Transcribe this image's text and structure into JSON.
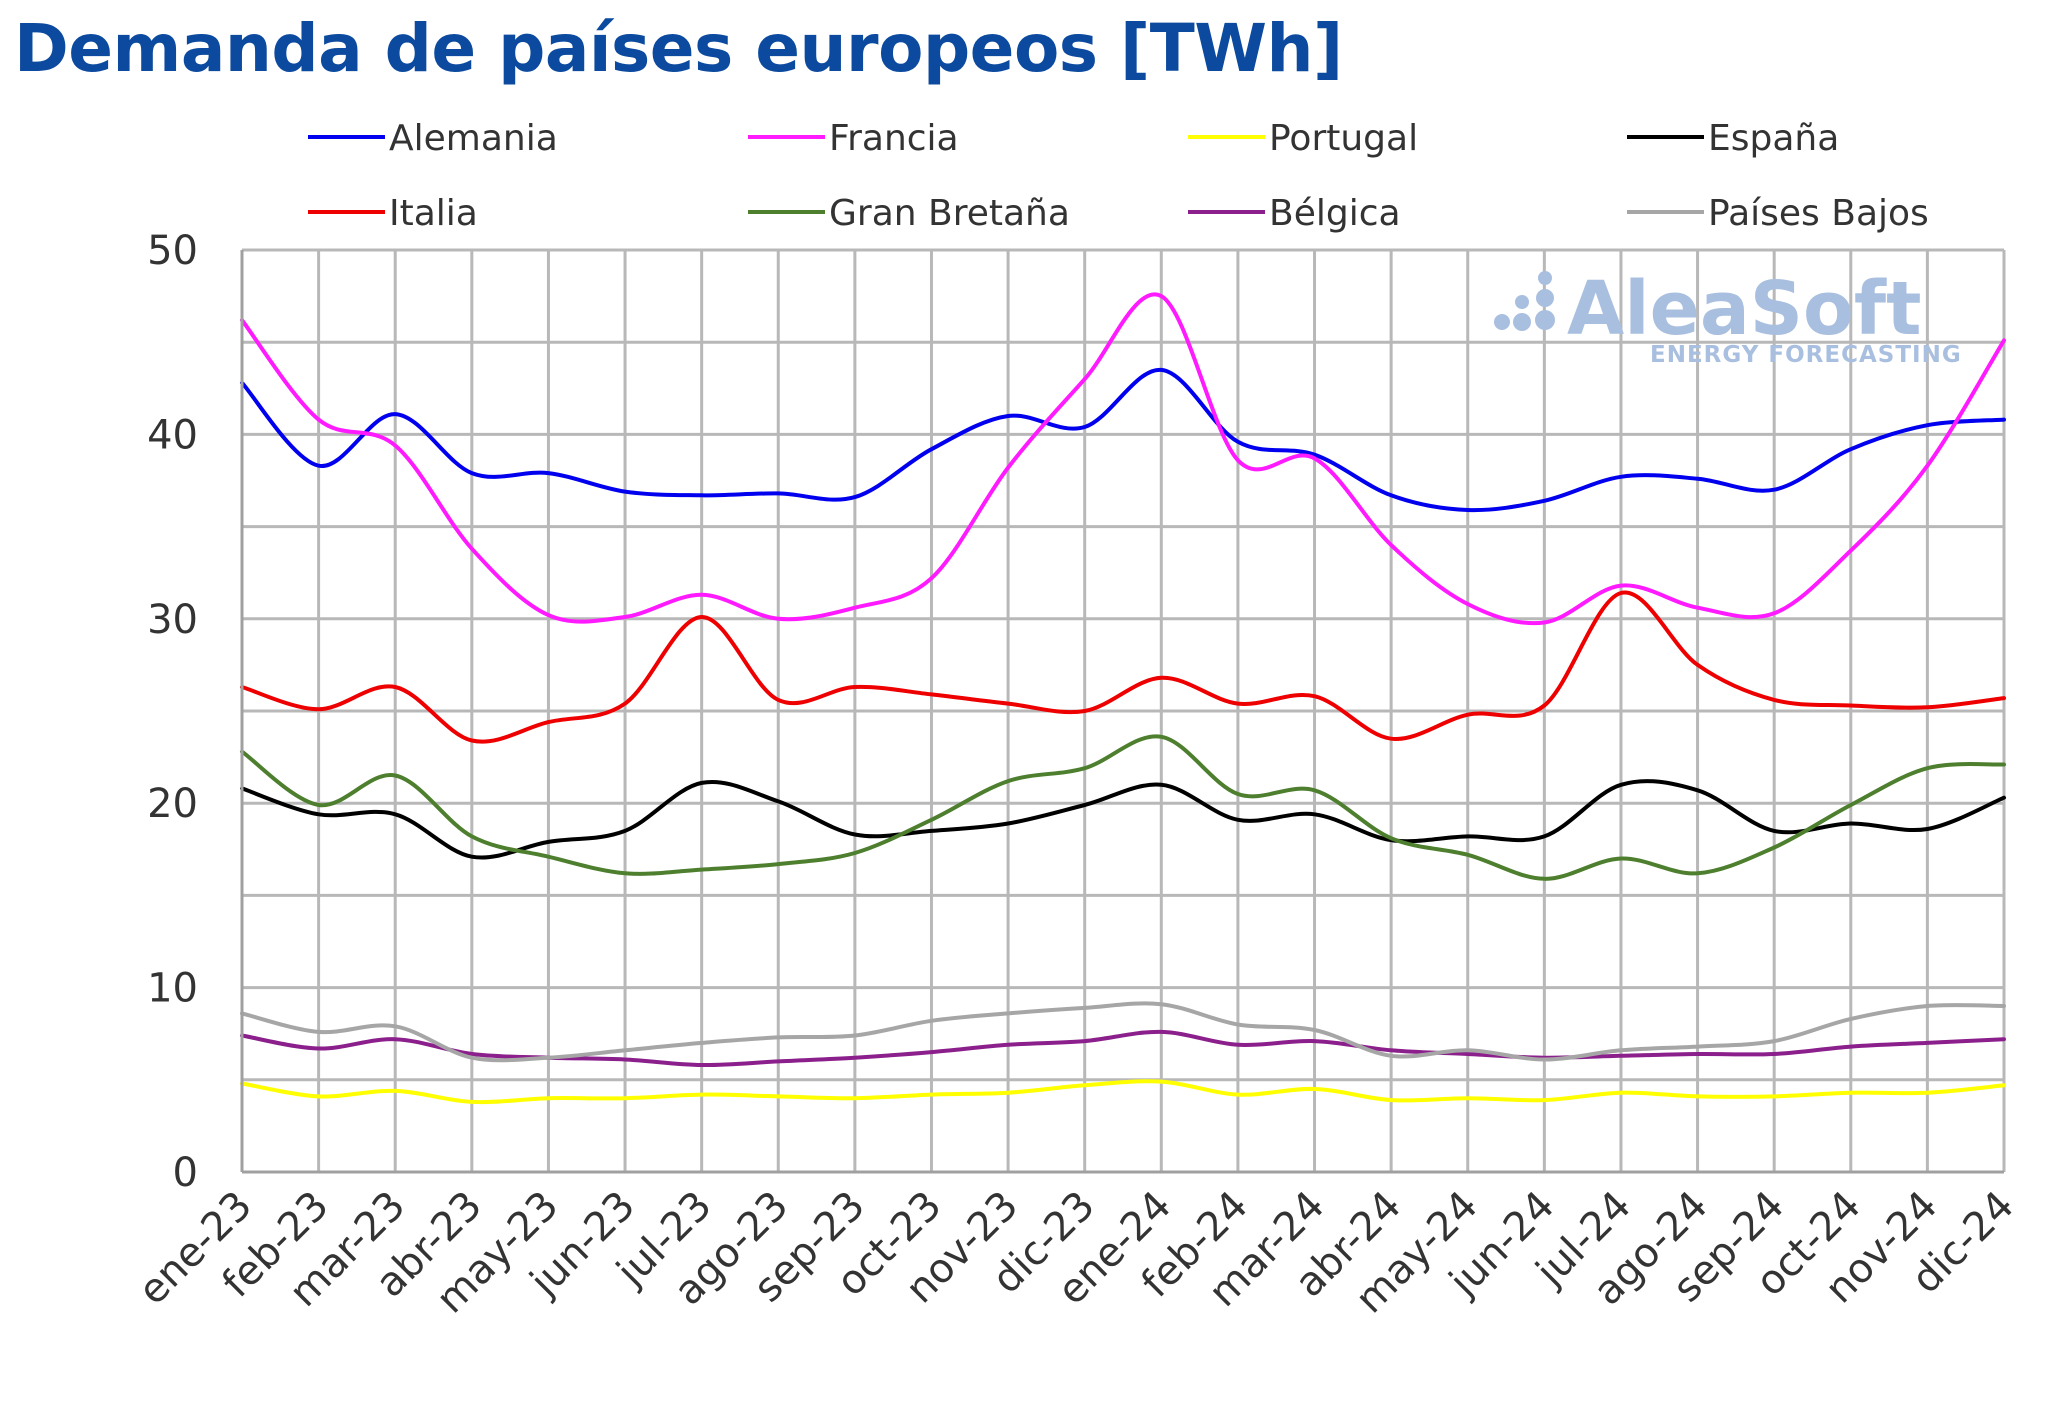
{
  "chart_data": {
    "type": "line",
    "title": "Demanda de países europeos [TWh]",
    "xlabel": "",
    "ylabel": "",
    "ylim": [
      0,
      50
    ],
    "yticks": [
      0,
      10,
      20,
      30,
      40,
      50
    ],
    "grid": true,
    "legend_position": "top",
    "watermark": {
      "main": "AleaSoft",
      "sub": "ENERGY FORECASTING"
    },
    "categories": [
      "ene-23",
      "feb-23",
      "mar-23",
      "abr-23",
      "may-23",
      "jun-23",
      "jul-23",
      "ago-23",
      "sep-23",
      "oct-23",
      "nov-23",
      "dic-23",
      "ene-24",
      "feb-24",
      "mar-24",
      "abr-24",
      "may-24",
      "jun-24",
      "jul-24",
      "ago-24",
      "sep-24",
      "oct-24",
      "nov-24",
      "dic-24"
    ],
    "series": [
      {
        "name": "Alemania",
        "color": "#0000ee",
        "values": [
          42.8,
          38.3,
          41.1,
          37.9,
          37.9,
          36.9,
          36.7,
          36.8,
          36.6,
          39.2,
          41.0,
          40.4,
          43.5,
          39.6,
          38.9,
          36.7,
          35.9,
          36.4,
          37.7,
          37.6,
          37.0,
          39.2,
          40.5,
          40.8
        ]
      },
      {
        "name": "Francia",
        "color": "#ff1aff",
        "values": [
          46.2,
          40.8,
          39.4,
          33.8,
          30.2,
          30.1,
          31.3,
          30.0,
          30.6,
          32.2,
          38.2,
          43.0,
          47.5,
          38.6,
          38.7,
          34.0,
          30.8,
          29.8,
          31.8,
          30.6,
          30.3,
          33.7,
          38.3,
          45.1
        ]
      },
      {
        "name": "Portugal",
        "color": "#ffff00",
        "values": [
          4.8,
          4.1,
          4.4,
          3.8,
          4.0,
          4.0,
          4.2,
          4.1,
          4.0,
          4.2,
          4.3,
          4.7,
          4.9,
          4.2,
          4.5,
          3.9,
          4.0,
          3.9,
          4.3,
          4.1,
          4.1,
          4.3,
          4.3,
          4.7
        ]
      },
      {
        "name": "España",
        "color": "#000000",
        "values": [
          20.8,
          19.4,
          19.4,
          17.1,
          17.9,
          18.5,
          21.1,
          20.1,
          18.3,
          18.5,
          18.9,
          19.9,
          21.0,
          19.1,
          19.4,
          18.0,
          18.2,
          18.2,
          21.0,
          20.7,
          18.5,
          18.9,
          18.6,
          20.3
        ]
      },
      {
        "name": "Italia",
        "color": "#ee0000",
        "values": [
          26.3,
          25.1,
          26.3,
          23.4,
          24.4,
          25.4,
          30.1,
          25.6,
          26.3,
          25.9,
          25.4,
          25.0,
          26.8,
          25.4,
          25.8,
          23.5,
          24.8,
          25.3,
          31.4,
          27.5,
          25.6,
          25.3,
          25.2,
          25.7
        ]
      },
      {
        "name": "Gran Bretaña",
        "color": "#4d7f2e",
        "values": [
          22.8,
          19.9,
          21.5,
          18.2,
          17.1,
          16.2,
          16.4,
          16.7,
          17.3,
          19.1,
          21.2,
          21.9,
          23.6,
          20.5,
          20.7,
          18.1,
          17.2,
          15.9,
          17.0,
          16.2,
          17.6,
          19.9,
          21.9,
          22.1
        ]
      },
      {
        "name": "Bélgica",
        "color": "#8b1f8b",
        "values": [
          7.4,
          6.7,
          7.2,
          6.4,
          6.2,
          6.1,
          5.8,
          6.0,
          6.2,
          6.5,
          6.9,
          7.1,
          7.6,
          6.9,
          7.1,
          6.6,
          6.4,
          6.2,
          6.3,
          6.4,
          6.4,
          6.8,
          7.0,
          7.2
        ]
      },
      {
        "name": "Países Bajos",
        "color": "#a6a6a6",
        "values": [
          8.6,
          7.6,
          7.9,
          6.2,
          6.2,
          6.6,
          7.0,
          7.3,
          7.4,
          8.2,
          8.6,
          8.9,
          9.1,
          8.0,
          7.7,
          6.3,
          6.6,
          6.1,
          6.6,
          6.8,
          7.1,
          8.3,
          9.0,
          9.0
        ]
      }
    ]
  }
}
